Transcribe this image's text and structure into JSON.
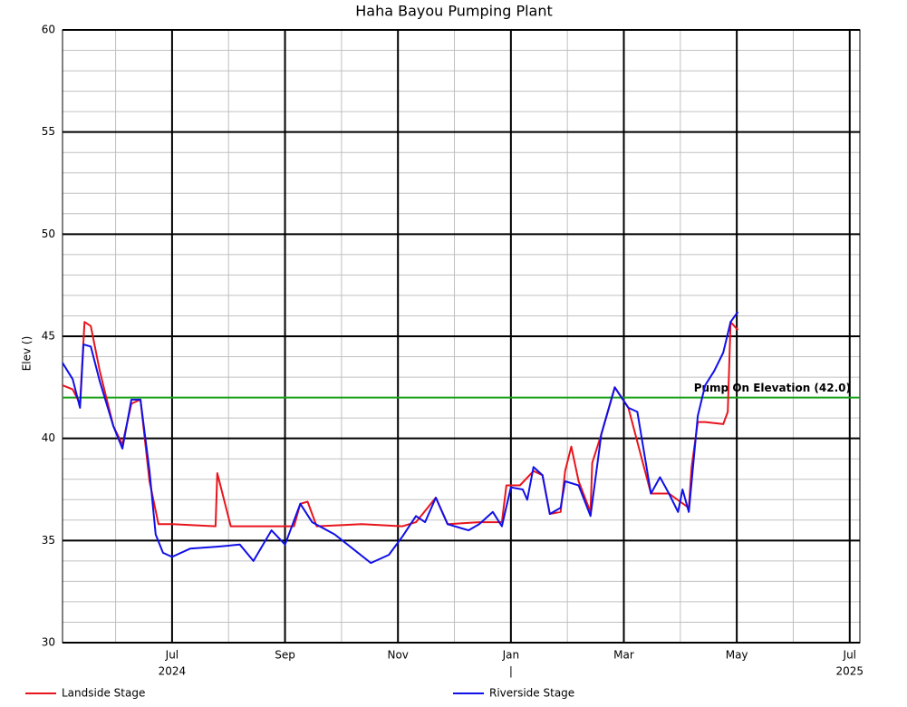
{
  "chart_data": {
    "type": "line",
    "title": "Haha Bayou Pumping Plant",
    "y_label": "Elev ()",
    "xlim": [
      5.06,
      19.18
    ],
    "xticks": [
      {
        "value": 7,
        "label": "Jul"
      },
      {
        "value": 9,
        "label": "Sep"
      },
      {
        "value": 11,
        "label": "Nov"
      },
      {
        "value": 13,
        "label": "Jan"
      },
      {
        "value": 15,
        "label": "Mar"
      },
      {
        "value": 17,
        "label": "May"
      },
      {
        "value": 19,
        "label": "Jul"
      }
    ],
    "xminorticks": [
      6,
      8,
      10,
      12,
      14,
      16,
      18
    ],
    "year_labels": [
      {
        "value": 7,
        "label": "2024"
      },
      {
        "value": 13,
        "label": "|"
      },
      {
        "value": 19,
        "label": "2025"
      }
    ],
    "ylim": [
      30,
      60
    ],
    "yticks": [
      30,
      35,
      40,
      45,
      50,
      55,
      60
    ],
    "yminorticks": [
      31,
      32,
      33,
      34,
      36,
      37,
      38,
      39,
      41,
      42,
      43,
      44,
      46,
      47,
      48,
      49,
      51,
      52,
      53,
      54,
      56,
      57,
      58,
      59
    ],
    "grid": true,
    "reference_line": {
      "value": 42,
      "label": "Pump On Elevation (42.0)",
      "color": "#1aa01a"
    },
    "series": [
      {
        "name": "Landside Stage",
        "color": "#e8141c",
        "x": [
          5.06,
          5.24,
          5.37,
          5.45,
          5.56,
          5.72,
          5.96,
          6.12,
          6.28,
          6.44,
          6.6,
          6.76,
          7.0,
          7.77,
          7.8,
          8.04,
          8.76,
          9.16,
          9.27,
          9.4,
          9.56,
          10.36,
          11.08,
          11.32,
          11.67,
          11.88,
          12.44,
          12.84,
          12.92,
          13.16,
          13.4,
          13.56,
          13.69,
          13.88,
          13.96,
          14.07,
          14.2,
          14.41,
          14.44,
          14.6,
          14.84,
          15.08,
          15.48,
          15.8,
          16.15,
          16.2,
          16.31,
          16.44,
          16.76,
          16.84,
          16.89,
          17.02
        ],
        "values": [
          42.6,
          42.4,
          41.7,
          45.7,
          45.5,
          43.3,
          40.6,
          39.7,
          41.7,
          41.9,
          37.9,
          35.8,
          35.8,
          35.7,
          38.3,
          35.7,
          35.7,
          35.7,
          36.8,
          36.9,
          35.7,
          35.8,
          35.7,
          35.9,
          37.1,
          35.8,
          35.9,
          35.9,
          37.7,
          37.7,
          38.4,
          38.2,
          36.3,
          36.4,
          38.4,
          39.6,
          37.9,
          36.4,
          38.8,
          40.2,
          42.5,
          41.5,
          37.3,
          37.3,
          36.6,
          38.6,
          40.8,
          40.8,
          40.7,
          41.3,
          45.7,
          45.3
        ]
      },
      {
        "name": "Riverside Stage",
        "color": "#1010e8",
        "x": [
          5.06,
          5.24,
          5.37,
          5.43,
          5.56,
          5.72,
          5.96,
          6.12,
          6.28,
          6.44,
          6.6,
          6.71,
          6.84,
          7.0,
          7.32,
          7.8,
          8.2,
          8.44,
          8.76,
          9.0,
          9.27,
          9.48,
          9.88,
          10.2,
          10.52,
          10.84,
          11.08,
          11.32,
          11.48,
          11.67,
          11.88,
          12.25,
          12.44,
          12.68,
          12.84,
          13.0,
          13.21,
          13.29,
          13.4,
          13.56,
          13.69,
          13.88,
          13.96,
          14.2,
          14.41,
          14.6,
          14.84,
          15.08,
          15.24,
          15.48,
          15.64,
          15.8,
          15.96,
          16.04,
          16.15,
          16.31,
          16.44,
          16.6,
          16.76,
          16.89,
          17.02
        ],
        "values": [
          43.7,
          42.9,
          41.5,
          44.6,
          44.5,
          42.8,
          40.6,
          39.5,
          41.9,
          41.9,
          38.4,
          35.3,
          34.4,
          34.2,
          34.6,
          34.7,
          34.8,
          34.0,
          35.5,
          34.8,
          36.8,
          35.9,
          35.3,
          34.6,
          33.9,
          34.3,
          35.2,
          36.2,
          35.9,
          37.1,
          35.8,
          35.5,
          35.8,
          36.4,
          35.7,
          37.6,
          37.5,
          37.0,
          38.6,
          38.2,
          36.3,
          36.6,
          37.9,
          37.7,
          36.2,
          40.2,
          42.5,
          41.5,
          41.3,
          37.3,
          38.1,
          37.3,
          36.4,
          37.5,
          36.4,
          41.1,
          42.6,
          43.3,
          44.2,
          45.7,
          46.2
        ]
      }
    ]
  }
}
